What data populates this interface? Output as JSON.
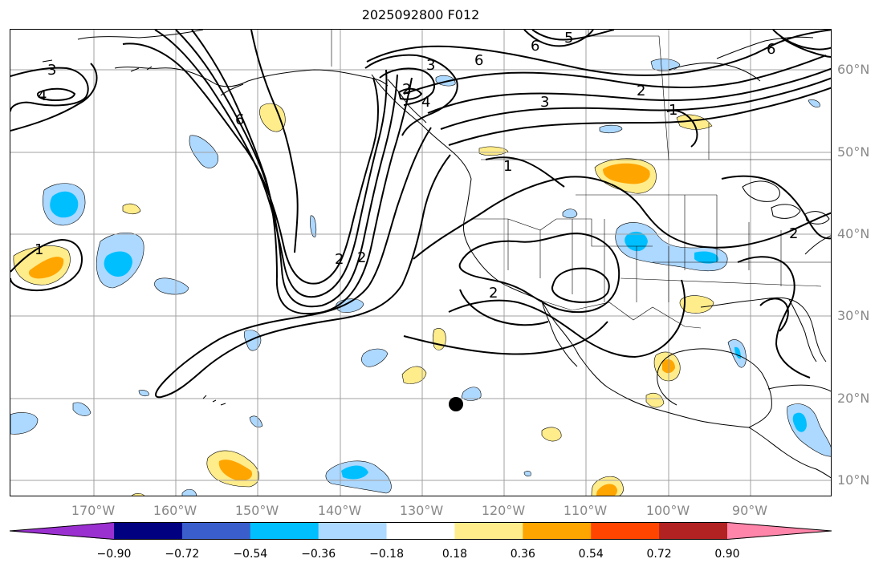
{
  "title": "2025092800 F012",
  "axes": {
    "lon_labels": [
      "170°W",
      "160°W",
      "150°W",
      "140°W",
      "130°W",
      "120°W",
      "110°W",
      "100°W",
      "90°W"
    ],
    "lat_labels": [
      "60°N",
      "50°N",
      "40°N",
      "30°N",
      "20°N",
      "10°N"
    ]
  },
  "colorbar": {
    "colors": [
      "#9b30d0",
      "#000080",
      "#3a5fcd",
      "#00bfff",
      "#add8ff",
      "#ffffff",
      "#ffec8b",
      "#ffa500",
      "#ff4500",
      "#b22222",
      "#ff85aa"
    ],
    "tick_labels": [
      "−0.90",
      "−0.72",
      "−0.54",
      "−0.36",
      "−0.18",
      "0.18",
      "0.36",
      "0.54",
      "0.72",
      "0.90"
    ],
    "tick_values": [
      -0.9,
      -0.72,
      -0.54,
      -0.36,
      -0.18,
      0.18,
      0.36,
      0.54,
      0.72,
      0.9
    ]
  },
  "contour_labels": [
    "3",
    "4",
    "5",
    "6",
    "6",
    "6",
    "3",
    "2",
    "4",
    "6",
    "3",
    "1",
    "1",
    "1",
    "2",
    "2",
    "2",
    "2",
    "2"
  ],
  "style": {
    "coast_color": "#000000",
    "contour_color": "#000000",
    "grid_color": "#a0a0a0",
    "label_color": "#888888"
  }
}
